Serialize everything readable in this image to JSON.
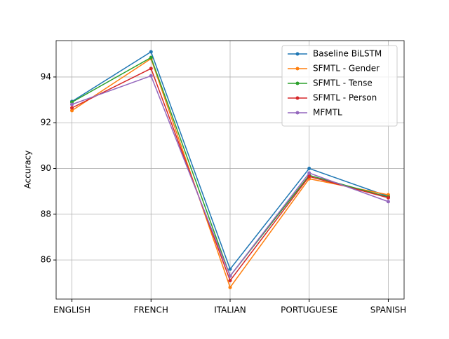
{
  "chart_data": {
    "type": "line",
    "ylabel": "Accuracy",
    "categories": [
      "ENGLISH",
      "FRENCH",
      "ITALIAN",
      "PORTUGUESE",
      "SPANISH"
    ],
    "series": [
      {
        "name": "Baseline BiLSTM",
        "color": "#1f77b4",
        "values": [
          92.93,
          95.1,
          85.6,
          90.0,
          88.78
        ]
      },
      {
        "name": "SFMTL - Gender",
        "color": "#ff7f0e",
        "values": [
          92.53,
          94.8,
          84.8,
          89.55,
          88.85
        ]
      },
      {
        "name": "SFMTL - Tense",
        "color": "#2ca02c",
        "values": [
          92.9,
          94.85,
          85.3,
          89.7,
          88.75
        ]
      },
      {
        "name": "SFMTL - Person",
        "color": "#d62728",
        "values": [
          92.65,
          94.37,
          85.1,
          89.65,
          88.72
        ]
      },
      {
        "name": "MFMTL",
        "color": "#9467bd",
        "values": [
          92.8,
          94.05,
          85.3,
          89.8,
          88.55
        ]
      }
    ],
    "ylim": [
      84.29,
      95.59
    ],
    "yticks": [
      86,
      88,
      90,
      92,
      94
    ],
    "grid": true,
    "legend": "upper right"
  }
}
